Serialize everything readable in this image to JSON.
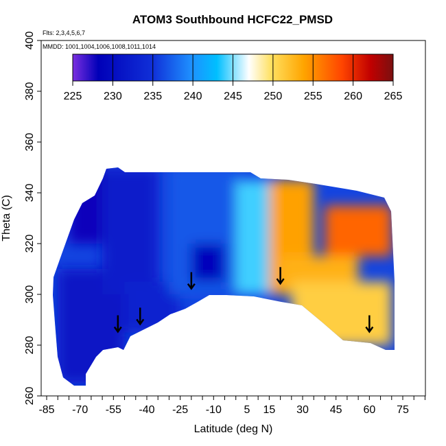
{
  "chart_data": {
    "type": "heatmap",
    "title": "ATOM3 Southbound HCFC22_PMSD",
    "subtitle_lines": [
      "Flts: 2,3,4,5,6,7",
      "MMDD: 1001,1004,1006,1008,1011,1014"
    ],
    "xlabel": "Latitude (deg N)",
    "ylabel": "Theta (C)",
    "xlim": [
      -85,
      85
    ],
    "ylim": [
      260,
      400
    ],
    "x_tick_labels": [
      "-85",
      "-70",
      "-55",
      "-40",
      "-25",
      "-10",
      "5",
      "15",
      "30",
      "45",
      "60",
      "75"
    ],
    "x_tick_values": [
      -85,
      -70,
      -55,
      -40,
      -25,
      -10,
      5,
      15,
      30,
      45,
      60,
      75
    ],
    "x_minor_step": 5,
    "y_ticks": [
      260,
      280,
      300,
      320,
      340,
      360,
      380,
      400
    ],
    "colorbar": {
      "ticks": [
        225,
        230,
        235,
        240,
        245,
        250,
        255,
        260,
        265
      ],
      "colors": [
        "#7b2fe0",
        "#0000b8",
        "#1030d8",
        "#1e90ff",
        "#00bfff",
        "#ffffff",
        "#ffe060",
        "#ffa500",
        "#ff4500",
        "#c00000",
        "#7a1010"
      ]
    },
    "field_regions": [
      {
        "lat_range": [
          -80,
          -50
        ],
        "theta_range": [
          265,
          310
        ],
        "value": 231
      },
      {
        "lat_range": [
          -75,
          -60
        ],
        "theta_range": [
          320,
          350
        ],
        "value": 228
      },
      {
        "lat_range": [
          -60,
          -35
        ],
        "theta_range": [
          300,
          350
        ],
        "value": 232
      },
      {
        "lat_range": [
          -50,
          -25
        ],
        "theta_range": [
          285,
          305
        ],
        "value": 233
      },
      {
        "lat_range": [
          -30,
          0
        ],
        "theta_range": [
          300,
          350
        ],
        "value": 237
      },
      {
        "lat_range": [
          -20,
          -5
        ],
        "theta_range": [
          305,
          320
        ],
        "value": 229
      },
      {
        "lat_range": [
          0,
          15
        ],
        "theta_range": [
          300,
          345
        ],
        "value": 244
      },
      {
        "lat_range": [
          15,
          35
        ],
        "theta_range": [
          300,
          345
        ],
        "value": 254
      },
      {
        "lat_range": [
          20,
          55
        ],
        "theta_range": [
          300,
          315
        ],
        "value": 253
      },
      {
        "lat_range": [
          40,
          70
        ],
        "theta_range": [
          315,
          335
        ],
        "value": 257
      },
      {
        "lat_range": [
          25,
          70
        ],
        "theta_range": [
          280,
          305
        ],
        "value": 251
      }
    ],
    "arrows": [
      {
        "lat": -53,
        "theta": 285
      },
      {
        "lat": -43,
        "theta": 288
      },
      {
        "lat": -20,
        "theta": 302
      },
      {
        "lat": 20,
        "theta": 304
      },
      {
        "lat": 60,
        "theta": 285
      }
    ]
  }
}
